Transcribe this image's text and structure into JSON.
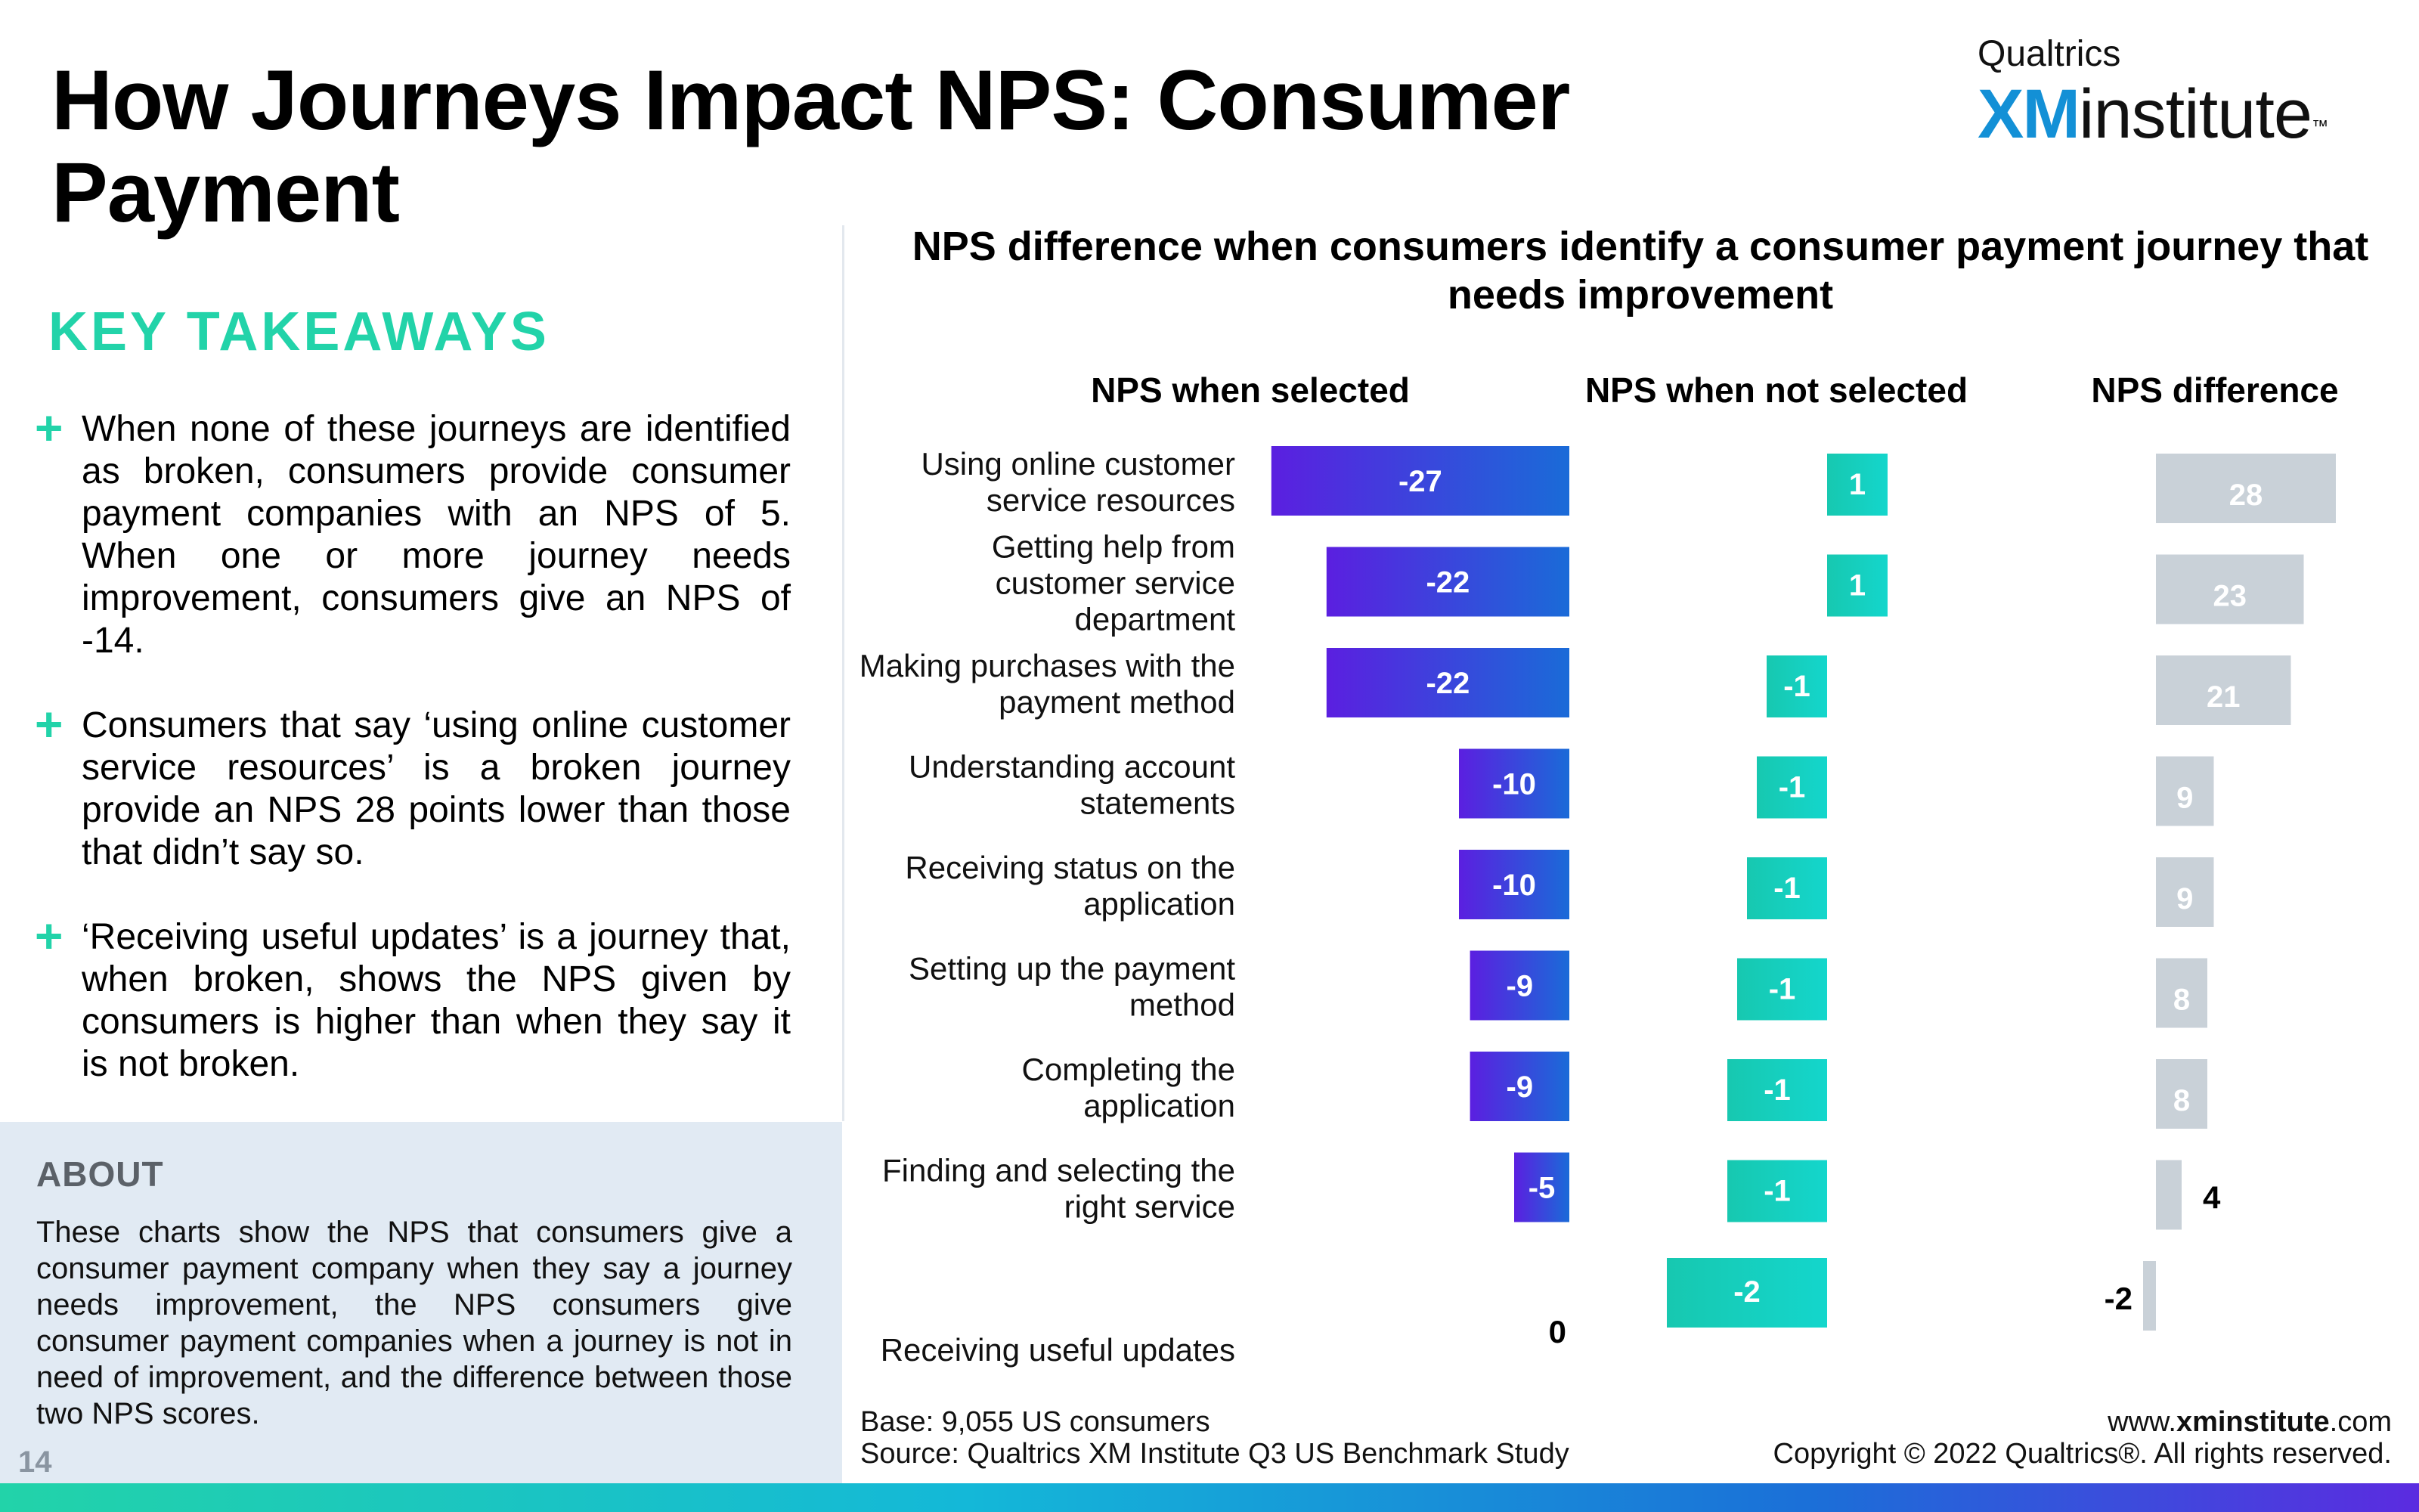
{
  "page": {
    "title": "How Journeys Impact NPS: Consumer Payment",
    "logo_small": "Qualtrics",
    "logo_xm": "XM",
    "logo_rest": "institute",
    "logo_tm": "™",
    "page_number": "14"
  },
  "takeaways": {
    "heading": "KEY TAKEAWAYS",
    "bullet_symbol": "+",
    "items": [
      "When none of these journeys are identified as broken, consumers provide consumer payment companies with an NPS of 5. When one or more journey needs improvement, consumers give an NPS of -14.",
      "Consumers that say ‘using online customer service resources’ is a broken journey provide an NPS 28 points lower than those that didn’t say so.",
      "‘Receiving useful updates’ is a journey that, when broken, shows the NPS given by consumers is higher than when they say it is not broken."
    ]
  },
  "about": {
    "heading": "ABOUT",
    "text": "These charts show the NPS that consumers give a consumer payment company when they say a journey needs improvement, the NPS consumers give consumer payment companies when a journey is not in need of improvement, and the difference between those two NPS scores."
  },
  "footer": {
    "base": "Base: 9,055 US consumers",
    "source": "Source: Qualtrics XM Institute Q3 US Benchmark Study",
    "site_prefix": "www.",
    "site_bold": "xminstitute",
    "site_suffix": ".com",
    "copyright": "Copyright © 2022 Qualtrics®. All rights reserved."
  },
  "chart_data": {
    "type": "bar",
    "title": "NPS difference when consumers identify a consumer payment journey that needs improvement",
    "categories": [
      "Using online customer service resources",
      "Getting help from customer service department",
      "Making purchases with the payment method",
      "Understanding account statements",
      "Receiving status on the application",
      "Setting up the payment method",
      "Completing the application",
      "Finding and selecting the right service",
      "Receiving useful updates"
    ],
    "series": [
      {
        "name": "NPS when selected",
        "values": [
          -27,
          -22,
          -22,
          -10,
          -10,
          -9,
          -9,
          -5,
          0
        ]
      },
      {
        "name": "NPS when not selected",
        "values": [
          1,
          1,
          -1,
          -1,
          -1,
          -1,
          -1,
          -1,
          -2
        ]
      },
      {
        "name": "NPS difference",
        "values": [
          28,
          23,
          21,
          9,
          9,
          8,
          8,
          4,
          -2
        ]
      }
    ],
    "colors": {
      "selected_start": "#5b1fe0",
      "selected_end": "#1a6bd8",
      "not_selected_start": "#17c8b0",
      "not_selected_end": "#14d6cc",
      "difference": "#c9d1d8"
    }
  }
}
